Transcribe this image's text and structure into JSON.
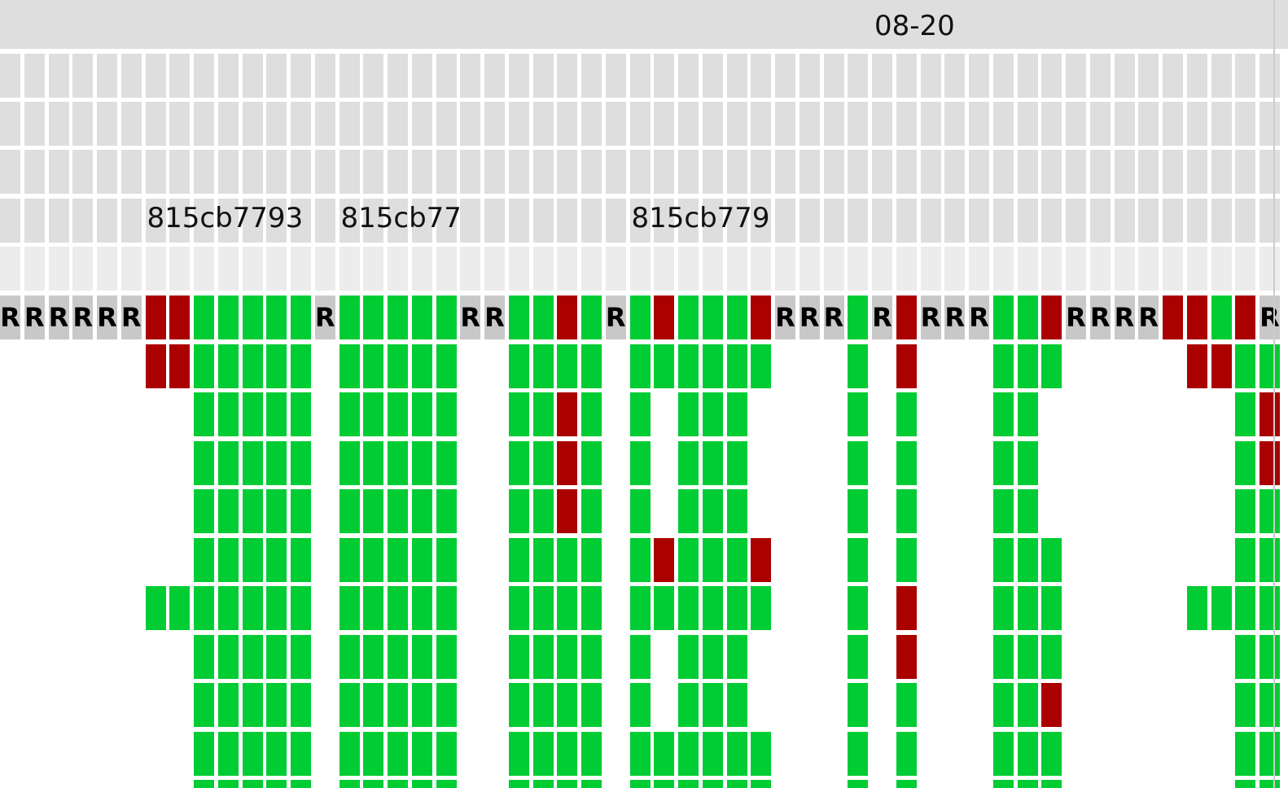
{
  "header": {
    "date_label": "08-20"
  },
  "revisions": [
    {
      "label": "815cb7793",
      "col": 6
    },
    {
      "label": "815cb77",
      "col": 14
    },
    {
      "label": "815cb779",
      "col": 26
    }
  ],
  "legend": {
    "retry_glyph": "R",
    "colors": {
      "pass": "#00cc33",
      "fail": "#aa0000",
      "retry": "#c8c8c8",
      "empty": "#dedede"
    }
  },
  "grid_rows": [
    "RRRRRRFFPPPPPRPPPPPRRPPFPRPFPPPFRRRPRFRRRPPFRRRRFFPFR",
    "      FFPPPPP PPPPP  PPPP PPPPPP   P F   PPP     FFPP ",
    "        PPPPP PPPPP  PPFP P PPP    P P   PP        PF ",
    "        PPPPP PPPPP  PPFP P PPP    P P   PP        PF ",
    "        PPPPP PPPPP  PPFP P PPP    P P   PP        PP ",
    "        PPPPP PPPPP  PPPP PFPPPF   P P   PPP       PP ",
    "      PPPPPPP PPPPP  PPPP PPPPPP   P F   PPP     PPPP ",
    "        PPPPP PPPPP  PPPP P PPP    P F   PPP       PP ",
    "        PPPPP PPPPP  PPPP P PPP    P P   PPF       PP ",
    "        PPPPP PPPPP  PPPP PPPPPP   P P   PPP       PP ",
    "        PPPPP PPPPP  PPPP PPPPPP   P P   PPP       PP "
  ]
}
